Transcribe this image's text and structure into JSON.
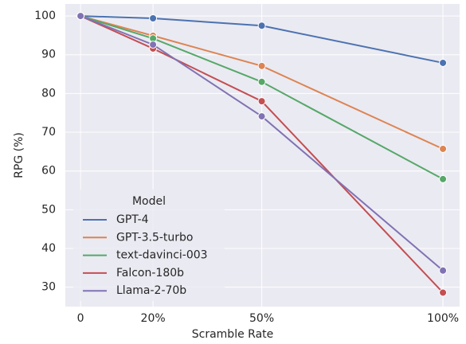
{
  "chart_data": {
    "type": "line",
    "x_label": "Scramble Rate",
    "y_label": "RPG (%)",
    "x": [
      0,
      20,
      50,
      100
    ],
    "xlim": [
      -4.2,
      104.6
    ],
    "xticks": [
      0,
      {
        "value": 20,
        "label": "20%"
      },
      {
        "value": 50,
        "label": "50%"
      },
      {
        "value": 100,
        "label": "100%"
      }
    ],
    "ylim": [
      25,
      103.1
    ],
    "yticks": [
      30,
      40,
      50,
      60,
      70,
      80,
      90,
      100
    ],
    "grid": true,
    "legend_title": "Model",
    "legend": "lower left",
    "series": [
      {
        "name": "GPT-4",
        "color": "#4c72b0",
        "values": [
          100,
          99.4,
          97.5,
          87.9
        ]
      },
      {
        "name": "GPT-3.5-turbo",
        "color": "#dd8452",
        "values": [
          100,
          94.9,
          87.1,
          65.7
        ]
      },
      {
        "name": "text-davinci-003",
        "color": "#55a868",
        "values": [
          100,
          94.2,
          83.0,
          57.9
        ]
      },
      {
        "name": "Falcon-180b",
        "color": "#c44e52",
        "values": [
          100,
          91.6,
          78.0,
          28.6
        ]
      },
      {
        "name": "Llama-2-70b",
        "color": "#8172b3",
        "values": [
          100,
          92.6,
          74.1,
          34.3
        ]
      }
    ]
  }
}
